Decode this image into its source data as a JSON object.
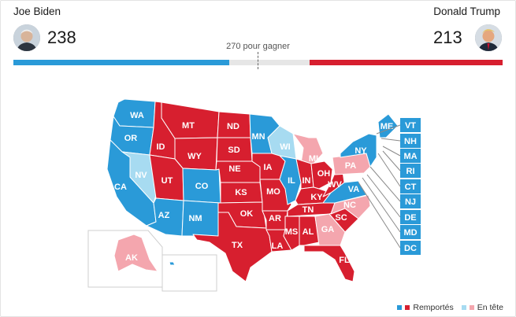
{
  "candidates": {
    "left": {
      "name": "Joe Biden",
      "electoral_votes": "238"
    },
    "right": {
      "name": "Donald Trump",
      "electoral_votes": "213"
    }
  },
  "threshold_label": "270 pour gagner",
  "progress": {
    "dem_fraction": 0.4407,
    "rep_fraction": 0.3944
  },
  "colors": {
    "dem_won": "#2a9ad8",
    "dem_leading": "#a7dbf1",
    "rep_won": "#d71f2f",
    "rep_leading": "#f4a6ae"
  },
  "states": [
    {
      "abbr": "WA",
      "status": "dem_won"
    },
    {
      "abbr": "OR",
      "status": "dem_won"
    },
    {
      "abbr": "CA",
      "status": "dem_won"
    },
    {
      "abbr": "NV",
      "status": "dem_leading"
    },
    {
      "abbr": "ID",
      "status": "rep_won"
    },
    {
      "abbr": "MT",
      "status": "rep_won"
    },
    {
      "abbr": "WY",
      "status": "rep_won"
    },
    {
      "abbr": "UT",
      "status": "rep_won"
    },
    {
      "abbr": "CO",
      "status": "dem_won"
    },
    {
      "abbr": "AZ",
      "status": "dem_won"
    },
    {
      "abbr": "NM",
      "status": "dem_won"
    },
    {
      "abbr": "ND",
      "status": "rep_won"
    },
    {
      "abbr": "SD",
      "status": "rep_won"
    },
    {
      "abbr": "NE",
      "status": "rep_won"
    },
    {
      "abbr": "KS",
      "status": "rep_won"
    },
    {
      "abbr": "OK",
      "status": "rep_won"
    },
    {
      "abbr": "TX",
      "status": "rep_won"
    },
    {
      "abbr": "MN",
      "status": "dem_won"
    },
    {
      "abbr": "IA",
      "status": "rep_won"
    },
    {
      "abbr": "MO",
      "status": "rep_won"
    },
    {
      "abbr": "AR",
      "status": "rep_won"
    },
    {
      "abbr": "LA",
      "status": "rep_won"
    },
    {
      "abbr": "WI",
      "status": "dem_leading"
    },
    {
      "abbr": "IL",
      "status": "dem_won"
    },
    {
      "abbr": "MI",
      "status": "rep_leading"
    },
    {
      "abbr": "IN",
      "status": "rep_won"
    },
    {
      "abbr": "OH",
      "status": "rep_won"
    },
    {
      "abbr": "KY",
      "status": "rep_won"
    },
    {
      "abbr": "TN",
      "status": "rep_won"
    },
    {
      "abbr": "MS",
      "status": "rep_won"
    },
    {
      "abbr": "AL",
      "status": "rep_won"
    },
    {
      "abbr": "GA",
      "status": "rep_leading"
    },
    {
      "abbr": "FL",
      "status": "rep_won"
    },
    {
      "abbr": "SC",
      "status": "rep_won"
    },
    {
      "abbr": "NC",
      "status": "rep_leading"
    },
    {
      "abbr": "VA",
      "status": "dem_won"
    },
    {
      "abbr": "WV",
      "status": "rep_won"
    },
    {
      "abbr": "PA",
      "status": "rep_leading"
    },
    {
      "abbr": "NY",
      "status": "dem_won"
    },
    {
      "abbr": "ME",
      "status": "dem_won"
    },
    {
      "abbr": "AK",
      "status": "rep_leading"
    },
    {
      "abbr": "HI",
      "status": "dem_won"
    }
  ],
  "small_states": [
    {
      "abbr": "VT",
      "status": "dem_won"
    },
    {
      "abbr": "NH",
      "status": "dem_won"
    },
    {
      "abbr": "MA",
      "status": "dem_won"
    },
    {
      "abbr": "RI",
      "status": "dem_won"
    },
    {
      "abbr": "CT",
      "status": "dem_won"
    },
    {
      "abbr": "NJ",
      "status": "dem_won"
    },
    {
      "abbr": "DE",
      "status": "dem_won"
    },
    {
      "abbr": "MD",
      "status": "dem_won"
    },
    {
      "abbr": "DC",
      "status": "dem_won"
    }
  ],
  "legend": {
    "won_label": "Remportés",
    "leading_label": "En tête"
  }
}
